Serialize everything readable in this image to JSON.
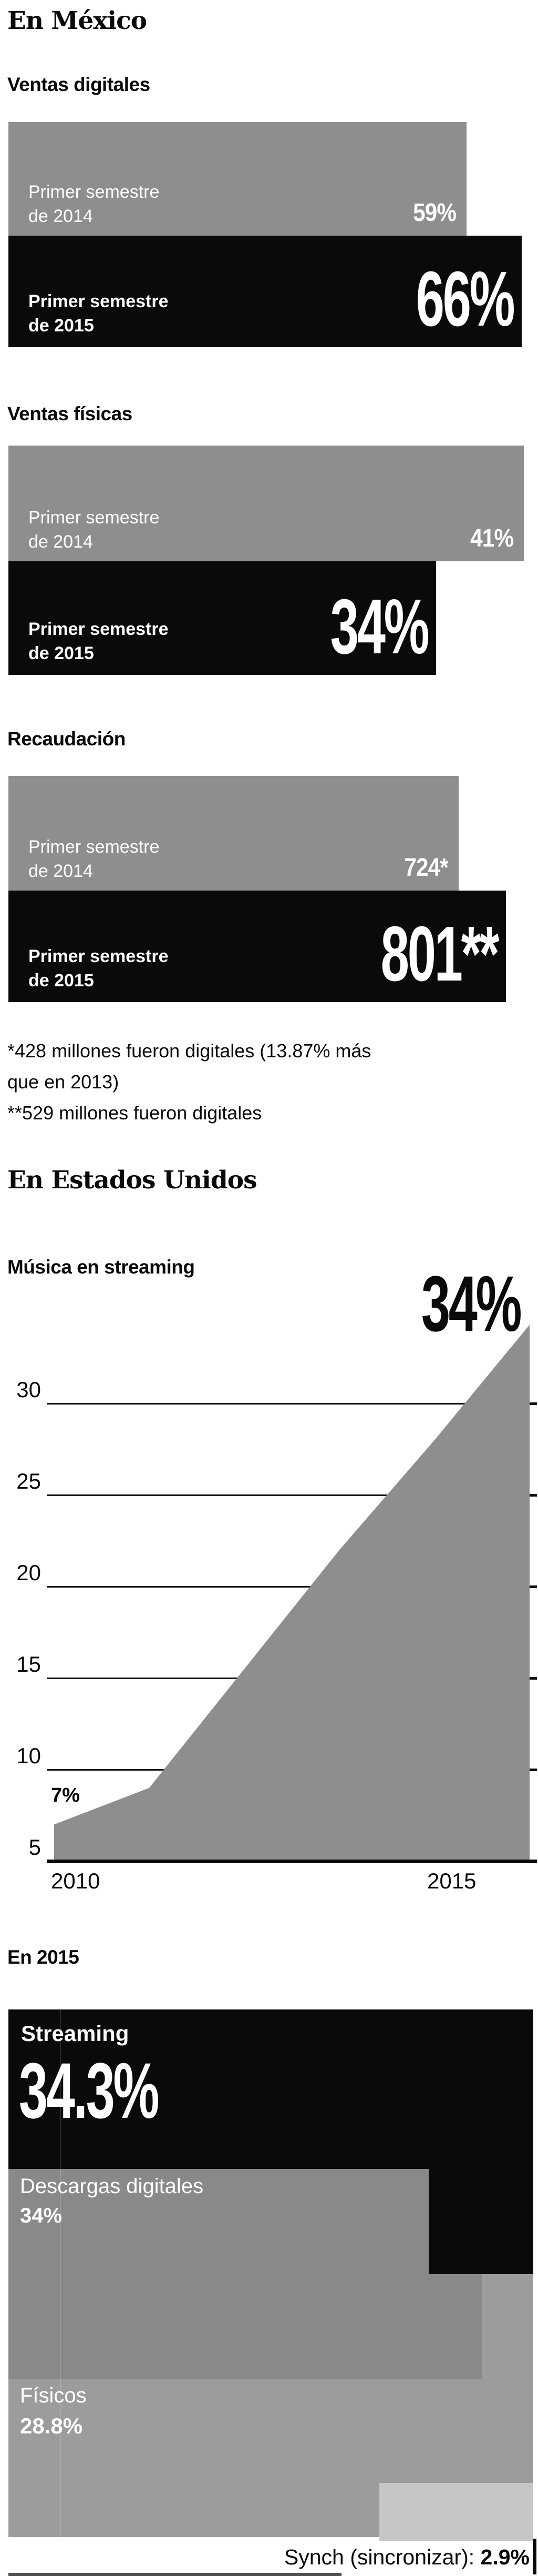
{
  "mexico": {
    "title": "En México",
    "sections": [
      {
        "heading": "Ventas digitales",
        "bars": [
          {
            "label_line1": "Primer semestre",
            "label_line2": "de 2014",
            "value_label": "59%",
            "style": "gray"
          },
          {
            "label_line1": "Primer semestre",
            "label_line2": "de 2015",
            "value_label": "66%",
            "style": "black"
          }
        ]
      },
      {
        "heading": "Ventas físicas",
        "bars": [
          {
            "label_line1": "Primer semestre",
            "label_line2": "de 2014",
            "value_label": "41%",
            "style": "gray"
          },
          {
            "label_line1": "Primer semestre",
            "label_line2": "de 2015",
            "value_label": "34%",
            "style": "black"
          }
        ]
      },
      {
        "heading": "Recaudación",
        "bars": [
          {
            "label_line1": "Primer semestre",
            "label_line2": "de 2014",
            "value_label": "724*",
            "style": "gray"
          },
          {
            "label_line1": "Primer semestre",
            "label_line2": "de 2015",
            "value_label": "801**",
            "style": "black"
          }
        ]
      }
    ],
    "footnotes": [
      "*428 millones fueron digitales (13.87% más",
      "que en 2013)",
      "**529 millones fueron digitales"
    ]
  },
  "usa": {
    "title": "En Estados Unidos",
    "streaming_heading": "Música en streaming",
    "peak_label": "34%",
    "start_label": "7%"
  },
  "treemap": {
    "heading": "En 2015",
    "items": [
      {
        "name": "Streaming",
        "pct": "34.3%"
      },
      {
        "name": "Descargas digitales",
        "pct": "34%"
      },
      {
        "name": "Físicos",
        "pct": "28.8%"
      },
      {
        "name": "Synch (sincronizar):",
        "pct": "2.9%"
      }
    ]
  },
  "colors": {
    "bar_gray": "#8e8e8e",
    "bar_black": "#0a0a0a",
    "area_gray": "#8e8e8e",
    "treemap_streaming": "#0a0a0a",
    "treemap_descargas": "#898989",
    "treemap_fisicos": "#9c9c9c",
    "treemap_synch": "#c6c6c6",
    "text_dark": "#0a0a0a",
    "text_light": "#ffffff"
  },
  "chart_data": [
    {
      "type": "area",
      "title": "Música en streaming",
      "x": [
        2010,
        2011,
        2012,
        2013,
        2014,
        2015
      ],
      "values": [
        7,
        9,
        15.5,
        22,
        28,
        34.3
      ],
      "unit": "%",
      "ylabel": "",
      "xlabel": "",
      "ylim": [
        5,
        35
      ],
      "y_ticks": [
        5,
        10,
        15,
        20,
        25,
        30
      ],
      "x_tick_labels": [
        "2010",
        "2015"
      ],
      "annotations": [
        {
          "x": 2010,
          "label": "7%"
        },
        {
          "x": 2015,
          "label": "34%"
        }
      ],
      "grid": true,
      "legend": "none"
    },
    {
      "type": "treemap-cascade",
      "title": "En 2015",
      "slices": [
        {
          "label": "Streaming",
          "value": 34.3
        },
        {
          "label": "Descargas digitales",
          "value": 34
        },
        {
          "label": "Físicos",
          "value": 28.8
        },
        {
          "label": "Synch (sincronizar)",
          "value": 2.9
        }
      ],
      "unit": "%"
    },
    {
      "type": "bar",
      "title": "En México",
      "groups": [
        {
          "name": "Ventas digitales",
          "categories": [
            "Primer semestre de 2014",
            "Primer semestre de 2015"
          ],
          "values": [
            59,
            66
          ],
          "unit": "%"
        },
        {
          "name": "Ventas físicas",
          "categories": [
            "Primer semestre de 2014",
            "Primer semestre de 2015"
          ],
          "values": [
            41,
            34
          ],
          "unit": "%"
        },
        {
          "name": "Recaudación",
          "categories": [
            "Primer semestre de 2014",
            "Primer semestre de 2015"
          ],
          "values": [
            724,
            801
          ],
          "unit": "millones"
        }
      ]
    }
  ]
}
